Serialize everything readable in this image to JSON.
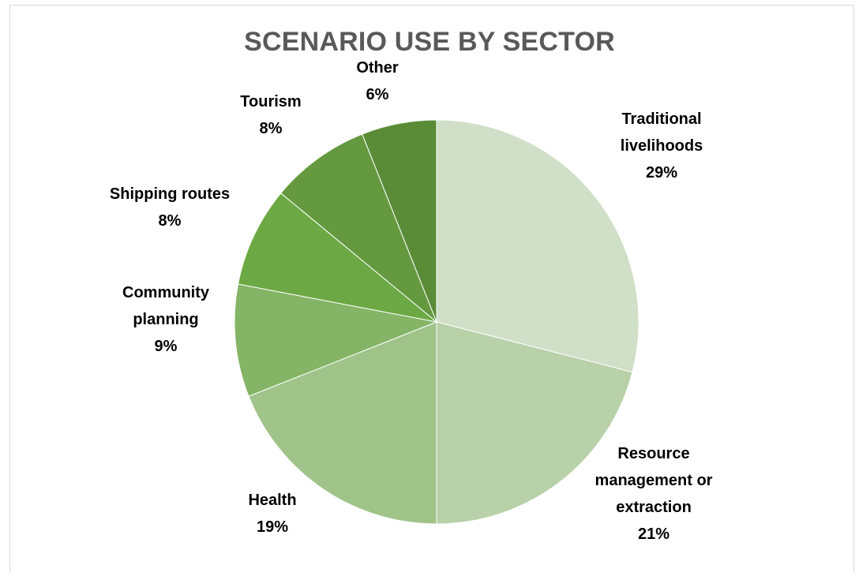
{
  "chart_data": {
    "type": "pie",
    "title": "SCENARIO USE BY SECTOR",
    "slices": [
      {
        "label": "Traditional livelihoods",
        "label_lines": [
          "Traditional",
          "livelihoods"
        ],
        "percent_label": "29%",
        "value": 29,
        "color": "#d0dfc7"
      },
      {
        "label": "Resource management or extraction",
        "label_lines": [
          "Resource",
          "management or",
          "extraction"
        ],
        "percent_label": "21%",
        "value": 21,
        "color": "#b8d1a8"
      },
      {
        "label": "Health",
        "label_lines": [
          "Health"
        ],
        "percent_label": "19%",
        "value": 19,
        "color": "#a0c38a"
      },
      {
        "label": "Community planning",
        "label_lines": [
          "Community",
          "planning"
        ],
        "percent_label": "9%",
        "value": 9,
        "color": "#84b466"
      },
      {
        "label": "Shipping routes",
        "label_lines": [
          "Shipping routes"
        ],
        "percent_label": "8%",
        "value": 8,
        "color": "#6ca944"
      },
      {
        "label": "Tourism",
        "label_lines": [
          "Tourism"
        ],
        "percent_label": "8%",
        "value": 8,
        "color": "#64993f"
      },
      {
        "label": "Other",
        "label_lines": [
          "Other"
        ],
        "percent_label": "6%",
        "value": 6,
        "color": "#5a8c38"
      }
    ],
    "legend": "none",
    "data_labels": "outside"
  }
}
